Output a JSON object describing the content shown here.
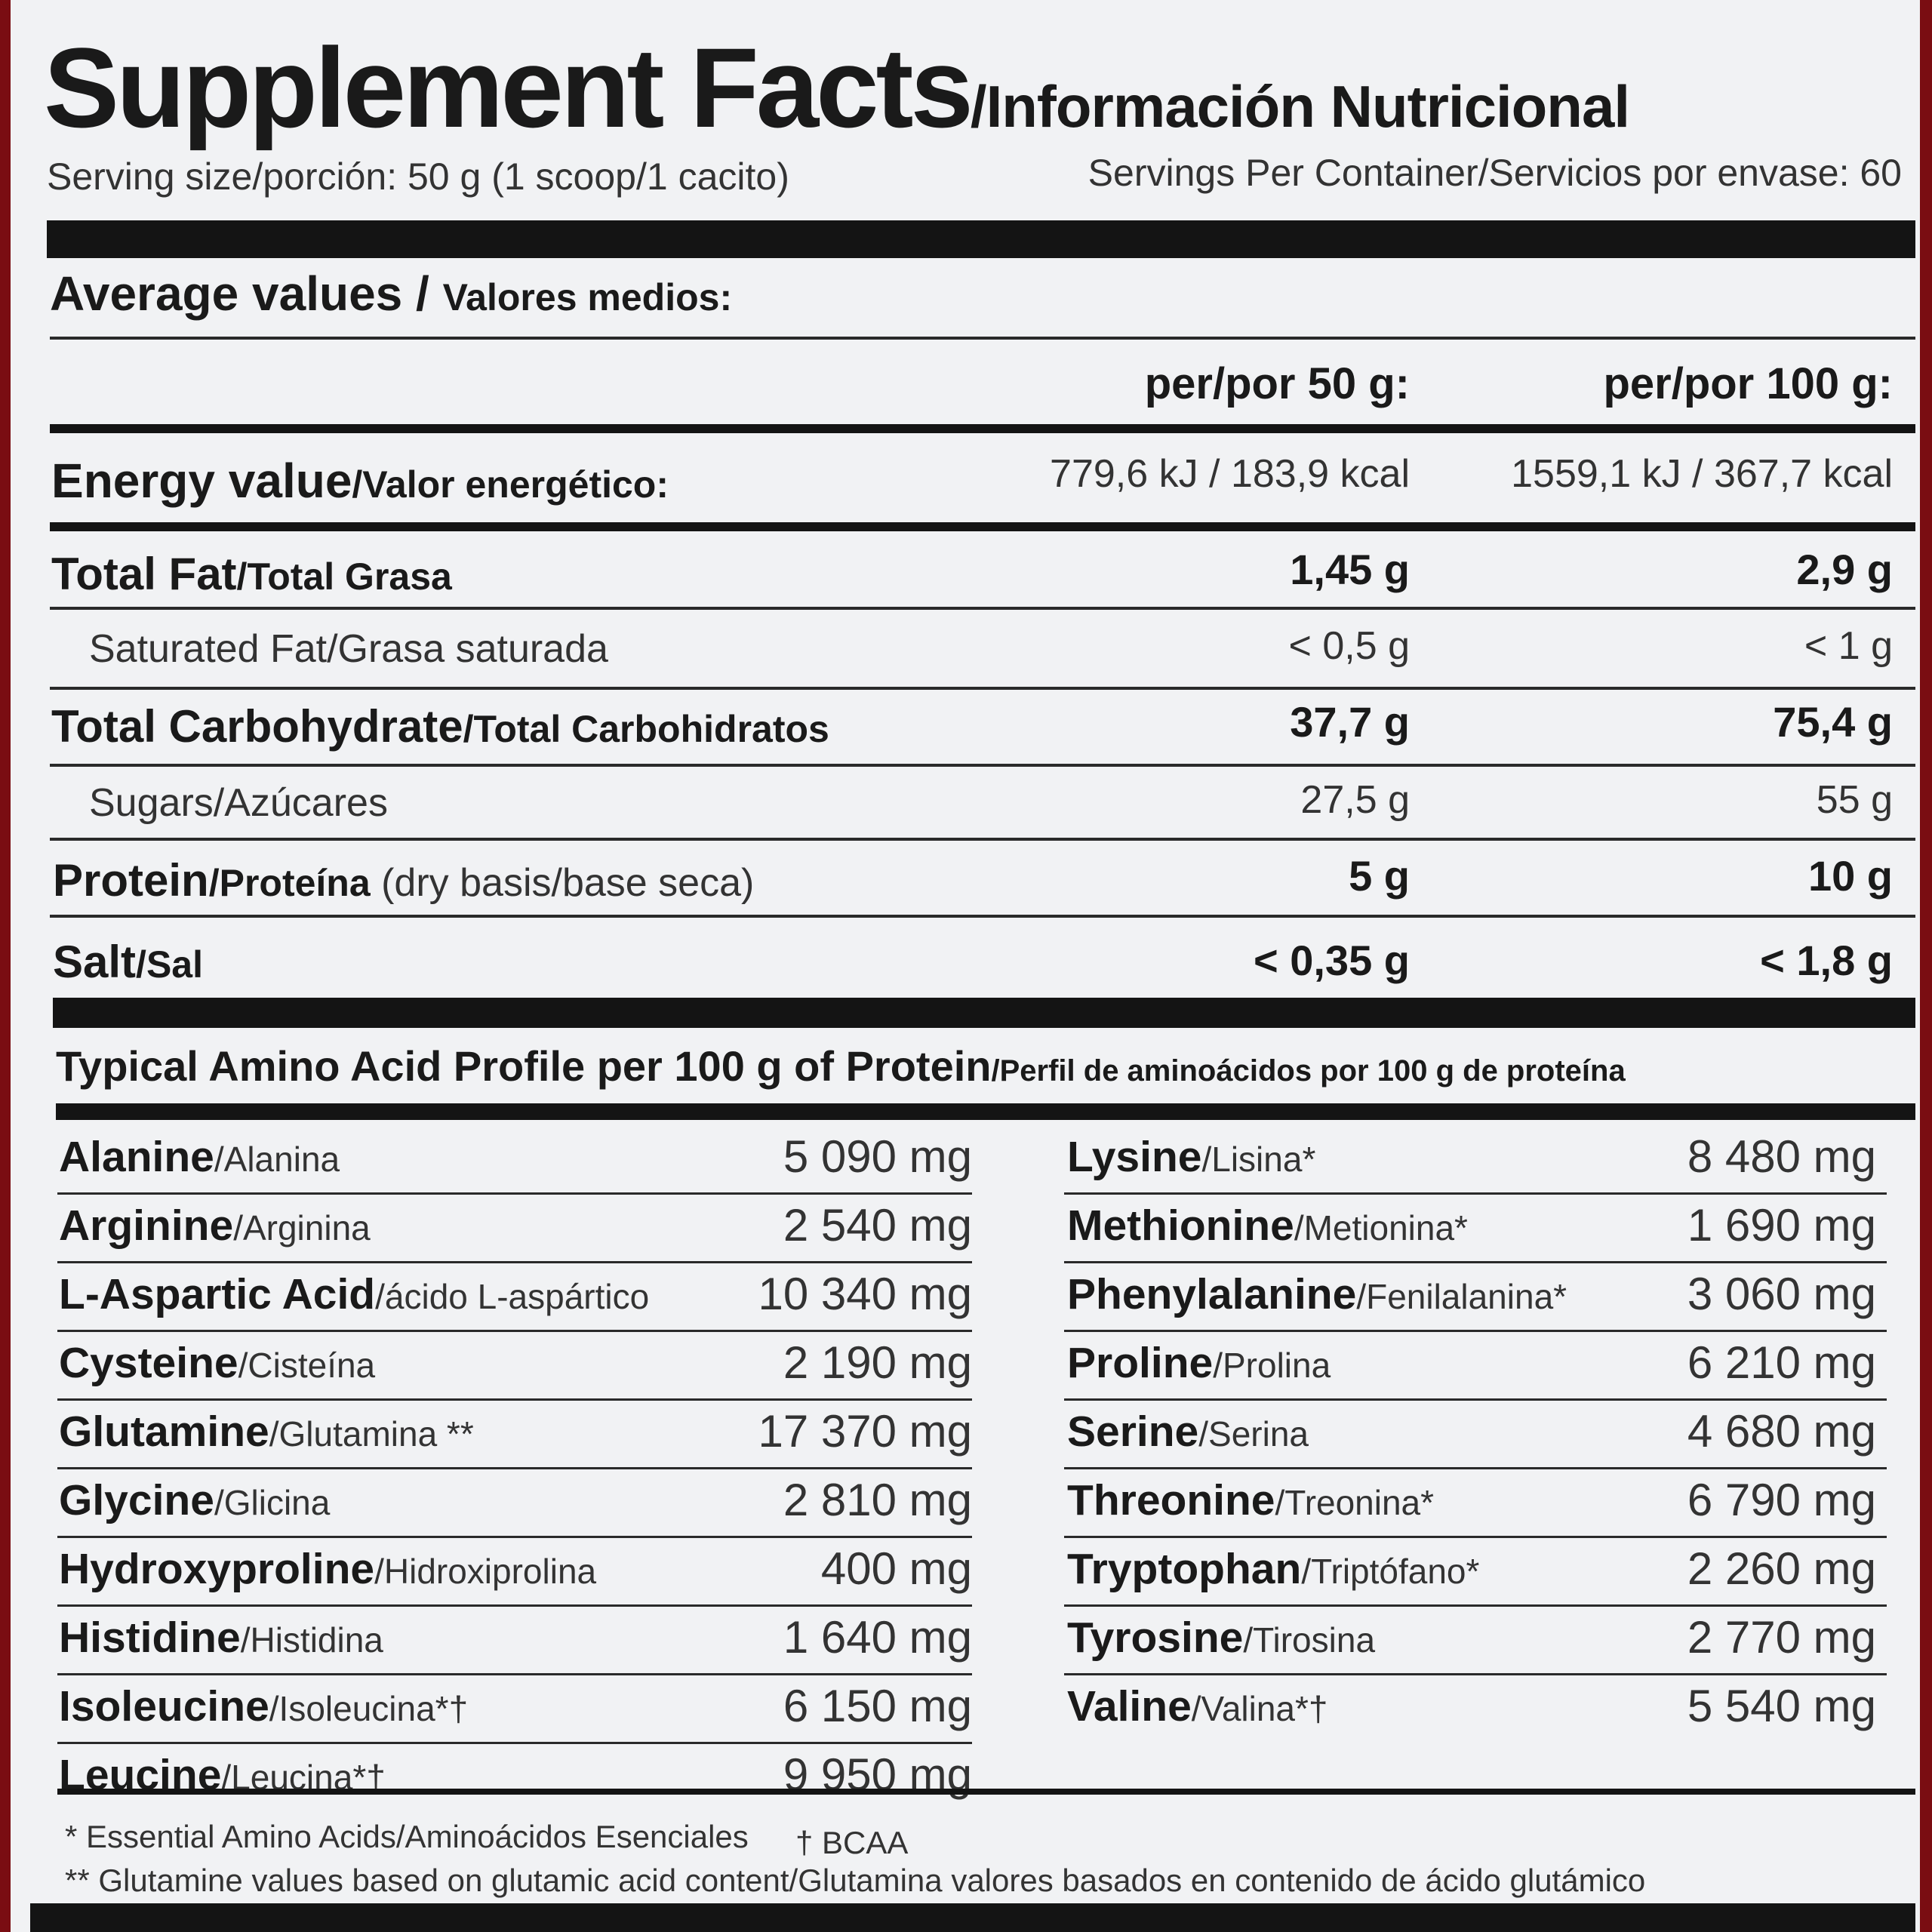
{
  "title": {
    "en": "Supplement Facts",
    "es": "/Información Nutricional"
  },
  "serving": {
    "size": "Serving size/porción: 50 g (1 scoop/1 cacito)",
    "per_container": "Servings Per Container/Servicios por envase: 60"
  },
  "average": {
    "en": "Average values / ",
    "es": "Valores medios:"
  },
  "columns": {
    "per50": "per/por 50 g:",
    "per100": "per/por 100 g:"
  },
  "energy": {
    "en": "Energy value",
    "es": "/Valor energético:",
    "v50": "779,6 kJ / 183,9 kcal",
    "v100": "1559,1 kJ / 367,7 kcal"
  },
  "nutrients": {
    "fat": {
      "en": "Total Fat",
      "es": "/Total Grasa",
      "v50": "1,45 g",
      "v100": "2,9 g"
    },
    "sat": {
      "label": "Saturated Fat/Grasa saturada",
      "v50": "< 0,5 g",
      "v100": "< 1 g"
    },
    "carb": {
      "en": "Total Carbohydrate",
      "es": "/Total Carbohidratos",
      "v50": "37,7 g",
      "v100": "75,4 g"
    },
    "sugar": {
      "label": "Sugars/Azúcares",
      "v50": "27,5 g",
      "v100": "55 g"
    },
    "protein": {
      "en": "Protein",
      "es": "/Proteína",
      "note": " (dry basis/base seca)",
      "v50": "5 g",
      "v100": "10 g"
    },
    "salt": {
      "en": "Salt",
      "es": "/Sal",
      "v50": "< 0,35 g",
      "v100": "< 1,8 g"
    }
  },
  "amino": {
    "heading_en": "Typical Amino Acid Profile per 100 g of Protein",
    "heading_es": "/Perfil de aminoácidos por 100 g de proteína",
    "left": [
      {
        "en": "Alanine",
        "es": "/Alanina",
        "value": "5 090 mg"
      },
      {
        "en": "Arginine",
        "es": "/Arginina",
        "value": "2 540 mg"
      },
      {
        "en": "L-Aspartic Acid",
        "es": "/ácido L-aspártico",
        "value": "10 340 mg"
      },
      {
        "en": "Cysteine",
        "es": "/Cisteína",
        "value": "2 190 mg"
      },
      {
        "en": "Glutamine",
        "es": "/Glutamina **",
        "value": "17 370 mg"
      },
      {
        "en": "Glycine",
        "es": "/Glicina",
        "value": "2 810 mg"
      },
      {
        "en": "Hydroxyproline",
        "es": "/Hidroxiprolina",
        "value": "400 mg"
      },
      {
        "en": "Histidine",
        "es": "/Histidina",
        "value": "1 640 mg"
      },
      {
        "en": "Isoleucine",
        "es": "/Isoleucina*†",
        "value": "6 150 mg"
      },
      {
        "en": "Leucine",
        "es": "/Leucina*†",
        "value": "9 950 mg"
      }
    ],
    "right": [
      {
        "en": "Lysine",
        "es": "/Lisina*",
        "value": "8 480 mg"
      },
      {
        "en": "Methionine",
        "es": "/Metionina*",
        "value": "1 690 mg"
      },
      {
        "en": "Phenylalanine",
        "es": "/Fenilalanina*",
        "value": "3 060 mg"
      },
      {
        "en": "Proline",
        "es": "/Prolina",
        "value": "6 210 mg"
      },
      {
        "en": "Serine",
        "es": "/Serina",
        "value": "4 680 mg"
      },
      {
        "en": "Threonine",
        "es": "/Treonina*",
        "value": "6 790 mg"
      },
      {
        "en": "Tryptophan",
        "es": "/Triptófano*",
        "value": "2 260 mg"
      },
      {
        "en": "Tyrosine",
        "es": "/Tirosina",
        "value": "2 770 mg"
      },
      {
        "en": "Valine",
        "es": "/Valina*†",
        "value": "5 540 mg"
      }
    ]
  },
  "footnotes": {
    "essential": "* Essential Amino Acids/Aminoácidos Esenciales",
    "bcaa": "† BCAA",
    "glutamine": "** Glutamine values based on glutamic acid content/Glutamina valores basados en contenido de ácido glutámico"
  }
}
